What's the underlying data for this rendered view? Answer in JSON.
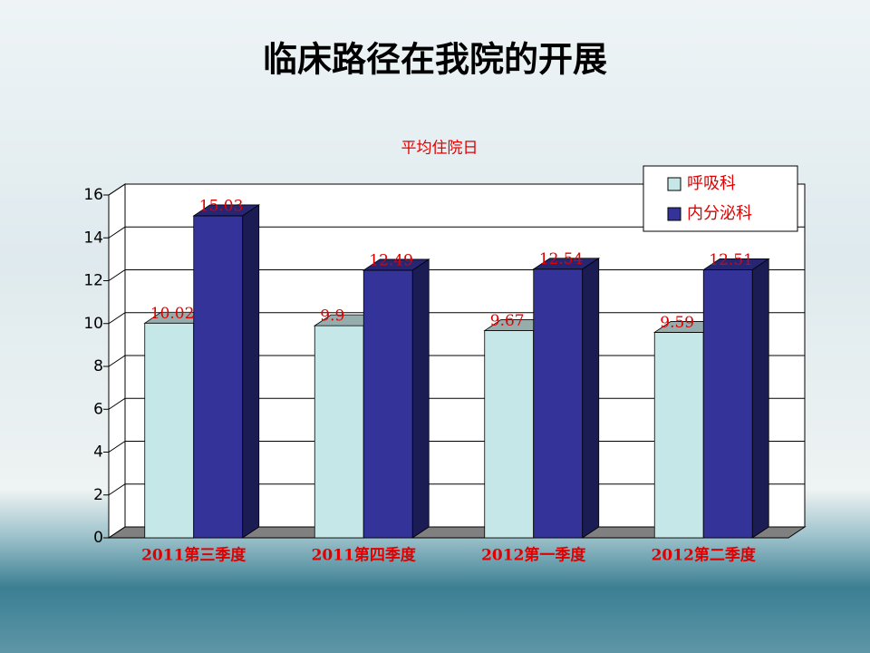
{
  "title": "临床路径在我院的开展",
  "chart_data": {
    "type": "bar3d",
    "title": "平均住院日",
    "categories": [
      "2011第三季度",
      "2011第四季度",
      "2012第一季度",
      "2012第二季度"
    ],
    "series": [
      {
        "name": "呼吸科",
        "color": "#c6e7e7",
        "values": [
          10.02,
          9.9,
          9.67,
          9.59
        ]
      },
      {
        "name": "内分泌科",
        "color": "#333399",
        "values": [
          15.03,
          12.49,
          12.54,
          12.51
        ]
      }
    ],
    "ylim": [
      0,
      16
    ],
    "yticks": [
      0,
      2,
      4,
      6,
      8,
      10,
      12,
      14,
      16
    ],
    "grid": true,
    "legend": "upper right"
  }
}
